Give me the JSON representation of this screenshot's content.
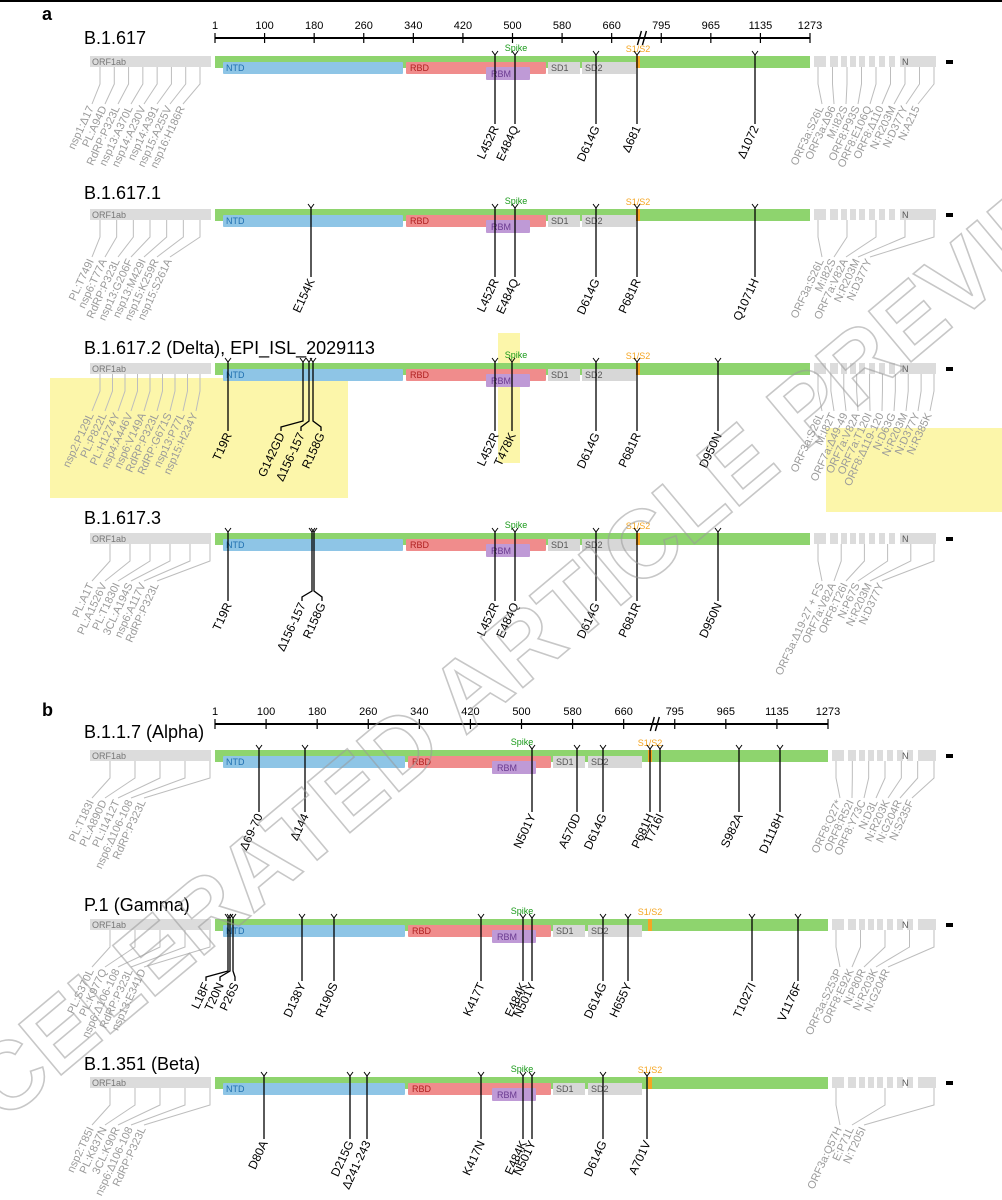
{
  "panels": [
    {
      "letter": "a",
      "scale_ticks": [
        "1",
        "100",
        "180",
        "260",
        "340",
        "420",
        "500",
        "580",
        "660",
        "795",
        "965",
        "1135",
        "1273"
      ],
      "tracks": [
        {
          "title": "B.1.617",
          "spike": [
            "L452R",
            "E484Q",
            "D614G",
            "Δ681",
            "Δ1072"
          ],
          "orf1ab": [
            "nsp1:Δ17",
            "PL:A94D",
            "RdRP:P323L",
            "nsp13:A370L",
            "nsp14:A230V",
            "nsp14:A391",
            "nsp15:A255V",
            "nsp16:H186R"
          ],
          "downstream": [
            "ORF3a:S26L",
            "ORF3a:Δ96",
            "M:I82S",
            "ORF8:P93S",
            "ORF8:E106Q",
            "ORF8:Δ110",
            "N:R203M",
            "N:D377Y",
            "N:A215"
          ]
        },
        {
          "title": "B.1.617.1",
          "spike": [
            "E154K",
            "L452R",
            "E484Q",
            "D614G",
            "P681R",
            "Q1071H"
          ],
          "orf1ab": [
            "PL:T749I",
            "nsp6:T77A",
            "RdRP:P323L",
            "nsp13:G206F",
            "nsp13:M429I",
            "nsp15:K259R",
            "nsp15:S261A"
          ],
          "downstream": [
            "ORF3a:S26L",
            "M:I82S",
            "ORF7a:V82A",
            "N:R203M",
            "N:D377Y"
          ]
        },
        {
          "title": "B.1.617.2 (Delta), EPI_ISL_2029113",
          "spike": [
            "T19R",
            "G142GD",
            "Δ156-157",
            "R158G",
            "L452R",
            "T478K",
            "D614G",
            "P681R",
            "D950N"
          ],
          "orf1ab": [
            "nsp2:P129L",
            "PL:P822L",
            "PL:H1274Y",
            "nsp4:A446V",
            "nsp6:V149A",
            "RdRP:P323L",
            "RdRP:G671S",
            "nsp13:P77L",
            "nsp15:H234Y"
          ],
          "downstream": [
            "ORF3a:S26L",
            "M:I82T",
            "ORF7a:Δ49-49",
            "ORF7a:V82A",
            "ORF7a:T120I",
            "ORF8:Δ119-120",
            "N:D63G",
            "N:R203M",
            "N:D377Y",
            "N:R385K"
          ]
        },
        {
          "title": "B.1.617.3",
          "spike": [
            "T19R",
            "Δ156-157",
            "R158G",
            "L452R",
            "E484Q",
            "D614G",
            "P681R",
            "D950N"
          ],
          "orf1ab": [
            "PL:A1T",
            "PL:A1526V",
            "PL:T1830I",
            "3CL:A194S",
            "nsp6:A117V",
            "RdRP:P323L"
          ],
          "downstream": [
            "ORF3a:Δ19-27 + FS",
            "ORF7a:V82A",
            "ORF8:T26I",
            "N:P67S",
            "N:R203M",
            "N:D377Y"
          ]
        }
      ]
    },
    {
      "letter": "b",
      "scale_ticks": [
        "1",
        "100",
        "180",
        "260",
        "340",
        "420",
        "500",
        "580",
        "660",
        "795",
        "965",
        "1135",
        "1273"
      ],
      "tracks": [
        {
          "title": "B.1.1.7 (Alpha)",
          "spike": [
            "Δ69-70",
            "Δ144",
            "N501Y",
            "A570D",
            "D614G",
            "P681H",
            "T716I",
            "S982A",
            "D1118H"
          ],
          "orf1ab": [
            "PL:T183I",
            "PL:A890D",
            "PL:I1412T",
            "nsp6:Δ106-108",
            "RdRP:P323L"
          ],
          "downstream": [
            "ORF8:Q27*",
            "ORF8:R52I",
            "ORF8:Y73C",
            "N:D3L",
            "N:R203K",
            "N:G204R",
            "N:S235F"
          ]
        },
        {
          "title": "P.1 (Gamma)",
          "spike": [
            "L18F",
            "T20N",
            "P26S",
            "D138Y",
            "R190S",
            "K417T",
            "E484K",
            "N501Y",
            "D614G",
            "H655Y",
            "T1027I",
            "V1176F"
          ],
          "orf1ab": [
            "PL:S370L",
            "PL:K977Q",
            "nsp6:Δ106-108",
            "RdRP:P323L",
            "nsp13:E341D"
          ],
          "downstream": [
            "ORF3a:S253P",
            "ORF8:E92K",
            "N:P80R",
            "N:R203K",
            "N:G204R"
          ]
        },
        {
          "title": "B.1.351 (Beta)",
          "spike": [
            "D80A",
            "D215G",
            "Δ241-243",
            "K417N",
            "E484K",
            "N501Y",
            "D614G",
            "A701V"
          ],
          "orf1ab": [
            "nsp2:T85I",
            "PL:K837N",
            "3CL:K90R",
            "nsp6:Δ106-108",
            "RdRP:P323L"
          ],
          "downstream": [
            "ORF3a:Q57H",
            "E:P71L",
            "N:T205I"
          ]
        }
      ]
    }
  ],
  "gene_labels": {
    "orf1ab": "ORF1ab",
    "ntd": "NTD",
    "rbd": "RBD",
    "rbm": "RBM",
    "sd1": "SD1",
    "sd2": "SD2",
    "spike": "Spike",
    "s1s2": "S1/S2",
    "n": "N"
  },
  "watermark": "ACCELERATED ARTICLE PREVIEW",
  "colors": {
    "spike_bar": "#8ed46e",
    "ntd": "#8ec5e6",
    "rbd": "#f08c8c",
    "rbm": "#bf9ad6",
    "sd": "#d7d7d7",
    "gene_gray": "#dcdcdc",
    "cleavage": "#f5a623",
    "spike_label": "#1a9a1a",
    "highlight": "#fbf59b",
    "gray_text": "#9a9a9a",
    "watermark": "#9a9a9a"
  }
}
